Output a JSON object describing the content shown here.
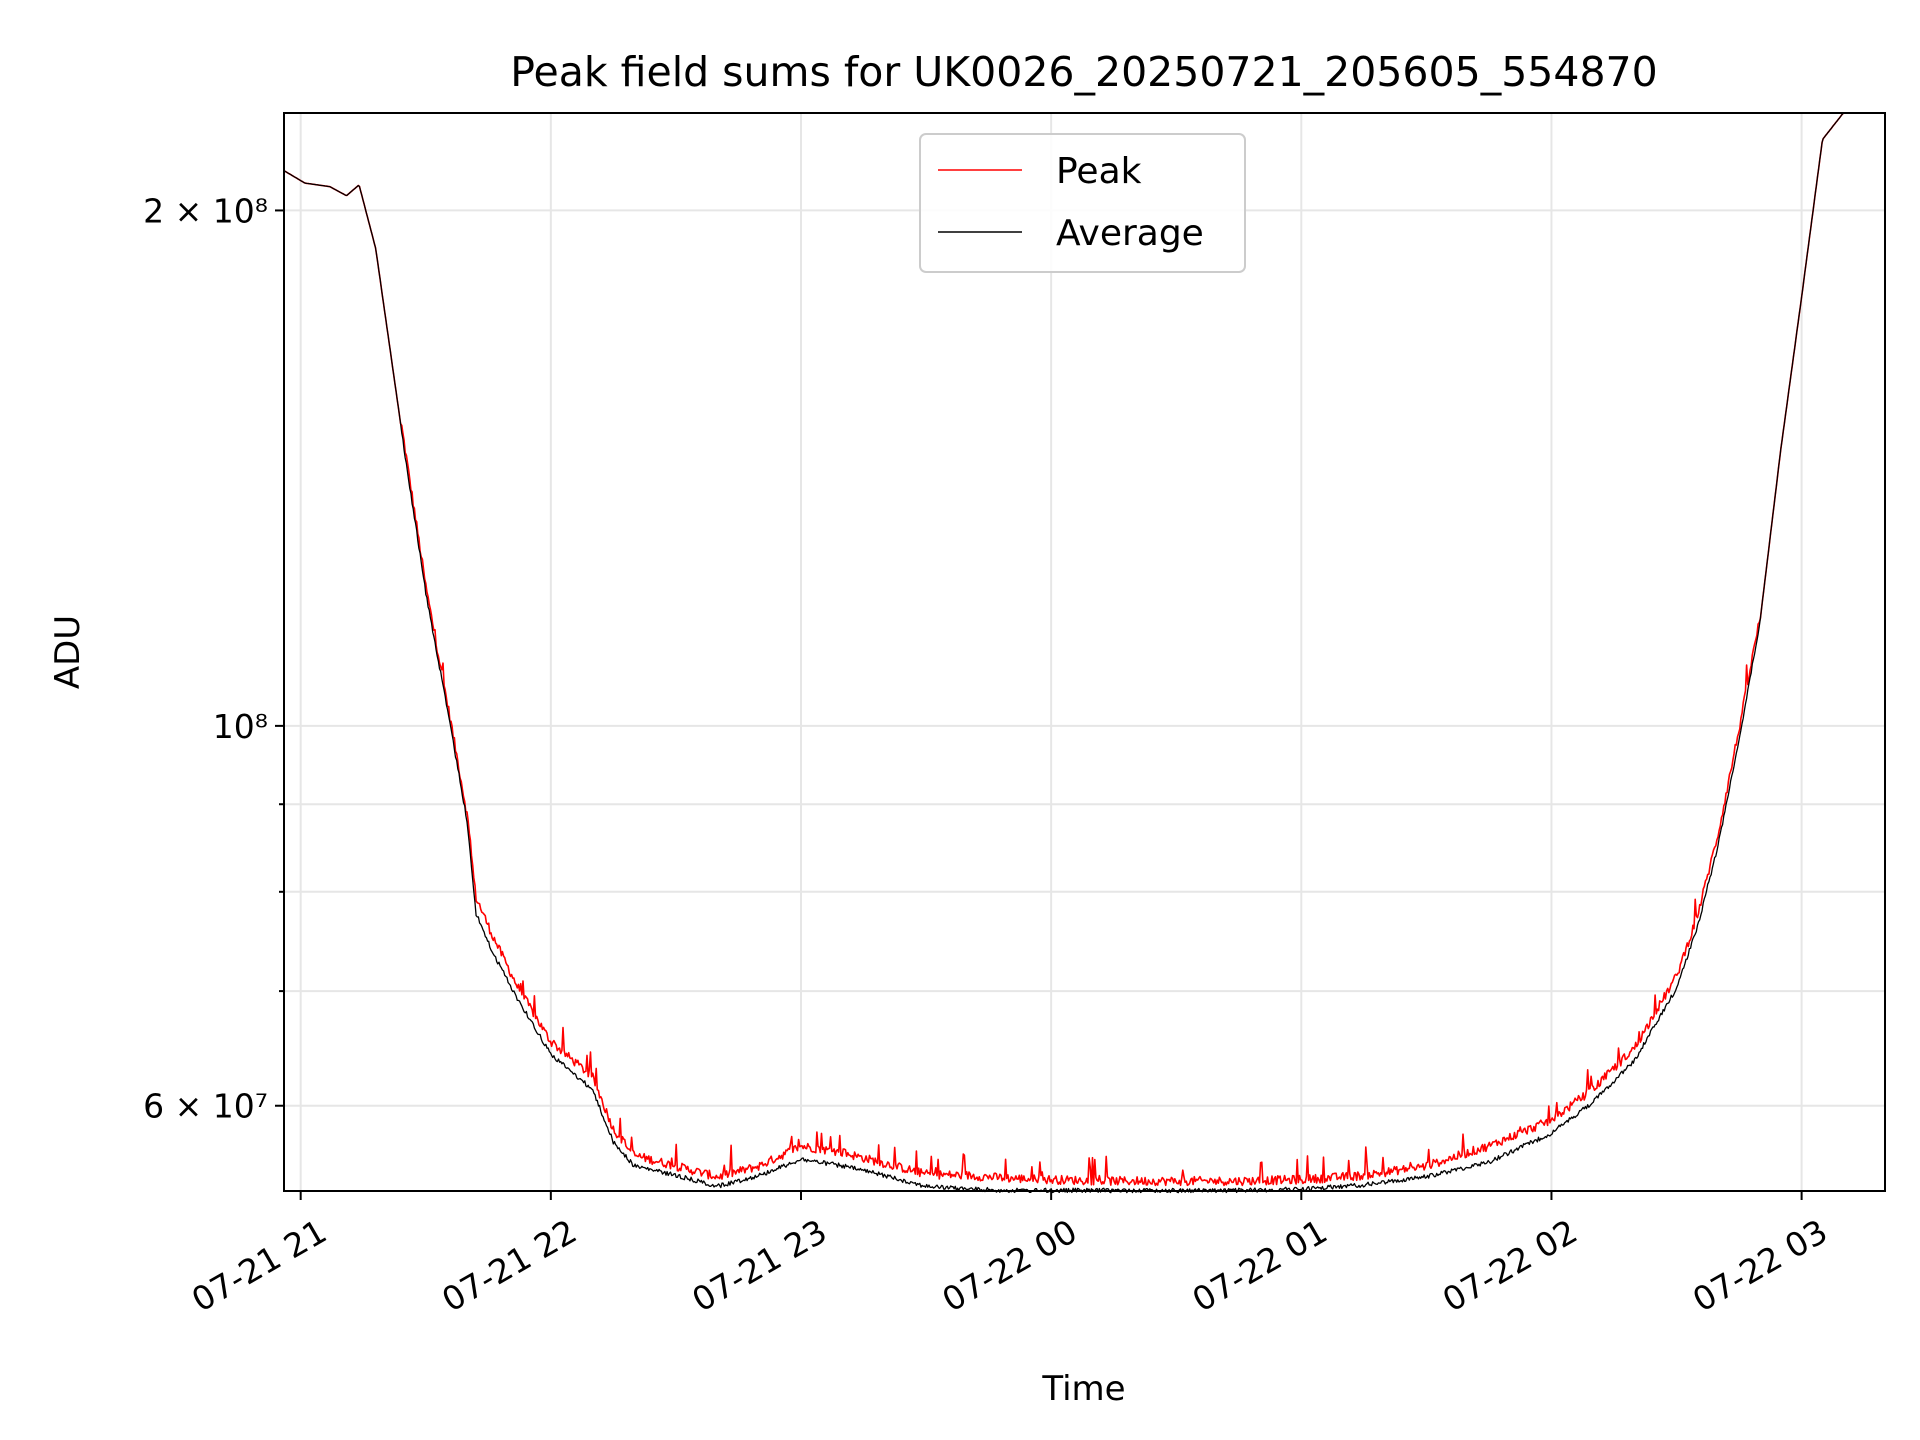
{
  "chart_data": {
    "type": "line",
    "title": "Peak field sums for UK0026_20250721_205605_554870",
    "xlabel": "Time",
    "ylabel": "ADU",
    "yscale": "log",
    "ylim": [
      53500000,
      228000000
    ],
    "xlim": [
      "2025-07-21 20:56",
      "2025-07-22 03:20"
    ],
    "grid": true,
    "legend_position": "upper-center",
    "x_ticks": [
      {
        "label": "07-21 21",
        "time": "2025-07-21 21:00"
      },
      {
        "label": "07-21 22",
        "time": "2025-07-21 22:00"
      },
      {
        "label": "07-21 23",
        "time": "2025-07-21 23:00"
      },
      {
        "label": "07-22 00",
        "time": "2025-07-22 00:00"
      },
      {
        "label": "07-22 01",
        "time": "2025-07-22 01:00"
      },
      {
        "label": "07-22 02",
        "time": "2025-07-22 02:00"
      },
      {
        "label": "07-22 03",
        "time": "2025-07-22 03:00"
      }
    ],
    "y_ticks": [
      {
        "label": "2 × 10⁸",
        "value": 200000000
      },
      {
        "label": "10⁸",
        "value": 100000000
      },
      {
        "label": "6 × 10⁷",
        "value": 60000000
      }
    ],
    "y_minor_ticks": [
      70000000,
      80000000,
      90000000
    ],
    "series": [
      {
        "name": "Peak",
        "color": "#ff0000",
        "noise": "spiky",
        "x": [
          "2025-07-21 20:56",
          "2025-07-21 21:01",
          "2025-07-21 21:07",
          "2025-07-21 21:11",
          "2025-07-21 21:14",
          "2025-07-21 21:18",
          "2025-07-21 21:24",
          "2025-07-21 21:30",
          "2025-07-21 21:36",
          "2025-07-21 21:40",
          "2025-07-21 21:42",
          "2025-07-21 21:46",
          "2025-07-21 21:52",
          "2025-07-21 22:00",
          "2025-07-21 22:10",
          "2025-07-21 22:15",
          "2025-07-21 22:20",
          "2025-07-21 22:30",
          "2025-07-21 22:40",
          "2025-07-21 22:50",
          "2025-07-21 23:00",
          "2025-07-21 23:10",
          "2025-07-21 23:20",
          "2025-07-21 23:30",
          "2025-07-21 23:40",
          "2025-07-21 23:50",
          "2025-07-22 00:00",
          "2025-07-22 00:15",
          "2025-07-22 00:30",
          "2025-07-22 00:45",
          "2025-07-22 01:00",
          "2025-07-22 01:15",
          "2025-07-22 01:30",
          "2025-07-22 01:45",
          "2025-07-22 02:00",
          "2025-07-22 02:10",
          "2025-07-22 02:20",
          "2025-07-22 02:30",
          "2025-07-22 02:35",
          "2025-07-22 02:40",
          "2025-07-22 02:45",
          "2025-07-22 02:50",
          "2025-07-22 02:55",
          "2025-07-22 03:00",
          "2025-07-22 03:05",
          "2025-07-22 03:10",
          "2025-07-22 03:20"
        ],
        "y": [
          211000000,
          207500000,
          206500000,
          204000000,
          207000000,
          190000000,
          150000000,
          120000000,
          100000000,
          88000000,
          79000000,
          75000000,
          70000000,
          65000000,
          62000000,
          57800000,
          55800000,
          55000000,
          54200000,
          55000000,
          56500000,
          56000000,
          55200000,
          54400000,
          54300000,
          54100000,
          54000000,
          53900000,
          53900000,
          53900000,
          54000000,
          54300000,
          55000000,
          56500000,
          58500000,
          61000000,
          64500000,
          71000000,
          77000000,
          86000000,
          99000000,
          115000000,
          145000000,
          178000000,
          220000000,
          228000000,
          228000000
        ]
      },
      {
        "name": "Average",
        "color": "#000000",
        "noise": "fine",
        "x": [
          "2025-07-21 20:56",
          "2025-07-21 21:01",
          "2025-07-21 21:07",
          "2025-07-21 21:11",
          "2025-07-21 21:14",
          "2025-07-21 21:18",
          "2025-07-21 21:24",
          "2025-07-21 21:30",
          "2025-07-21 21:36",
          "2025-07-21 21:40",
          "2025-07-21 21:42",
          "2025-07-21 21:46",
          "2025-07-21 21:52",
          "2025-07-21 22:00",
          "2025-07-21 22:10",
          "2025-07-21 22:15",
          "2025-07-21 22:20",
          "2025-07-21 22:30",
          "2025-07-21 22:40",
          "2025-07-21 22:50",
          "2025-07-21 23:00",
          "2025-07-21 23:10",
          "2025-07-21 23:20",
          "2025-07-21 23:30",
          "2025-07-21 23:40",
          "2025-07-21 23:50",
          "2025-07-22 00:00",
          "2025-07-22 00:15",
          "2025-07-22 00:30",
          "2025-07-22 00:45",
          "2025-07-22 01:00",
          "2025-07-22 01:15",
          "2025-07-22 01:30",
          "2025-07-22 01:45",
          "2025-07-22 02:00",
          "2025-07-22 02:10",
          "2025-07-22 02:20",
          "2025-07-22 02:30",
          "2025-07-22 02:35",
          "2025-07-22 02:40",
          "2025-07-22 02:45",
          "2025-07-22 02:50",
          "2025-07-22 02:55",
          "2025-07-22 03:00",
          "2025-07-22 03:05",
          "2025-07-22 03:10",
          "2025-07-22 03:20"
        ],
        "y": [
          211000000,
          207500000,
          206500000,
          204000000,
          207000000,
          190000000,
          150000000,
          120000000,
          100000000,
          88000000,
          78000000,
          74000000,
          69500000,
          64500000,
          61500000,
          57300000,
          55500000,
          54800000,
          54000000,
          54800000,
          56000000,
          55500000,
          54800000,
          54000000,
          53800000,
          53700000,
          53700000,
          53700000,
          53700000,
          53700000,
          53800000,
          54100000,
          54700000,
          55800000,
          58000000,
          60500000,
          64000000,
          70500000,
          76500000,
          85500000,
          98500000,
          115000000,
          145000000,
          178000000,
          220000000,
          228000000,
          228000000
        ]
      }
    ]
  }
}
